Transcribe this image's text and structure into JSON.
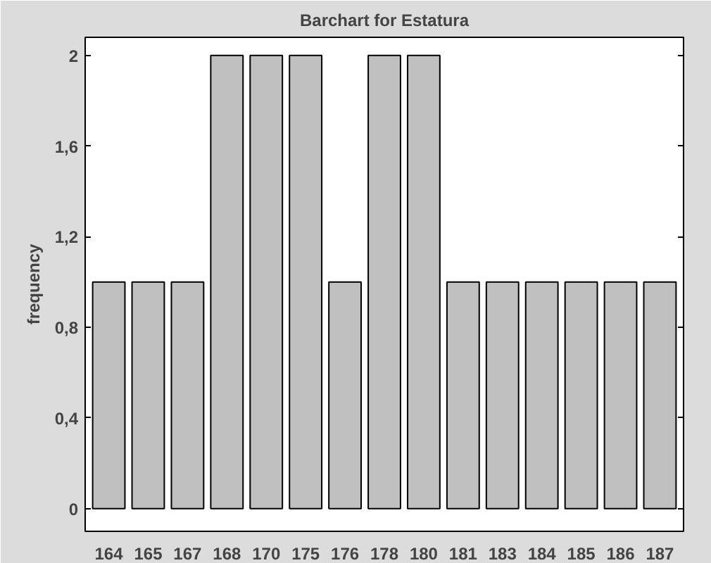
{
  "chart_data": {
    "type": "bar",
    "title": "Barchart for Estatura",
    "ylabel": "frequency",
    "categories": [
      "164",
      "165",
      "167",
      "168",
      "170",
      "175",
      "176",
      "178",
      "180",
      "181",
      "183",
      "184",
      "185",
      "186",
      "187"
    ],
    "values": [
      1,
      1,
      1,
      2,
      2,
      2,
      1,
      2,
      2,
      1,
      1,
      1,
      1,
      1,
      1
    ],
    "color": "#c0c0c0",
    "ylim": [
      -0.1,
      2.08
    ],
    "yticks": [
      0,
      {
        "value": 0.4,
        "label": "0,4"
      },
      {
        "value": 0.8,
        "label": "0,8"
      },
      {
        "value": 1.2,
        "label": "1,2"
      },
      {
        "value": 1.6,
        "label": "1,6"
      },
      2
    ],
    "grid": false
  }
}
